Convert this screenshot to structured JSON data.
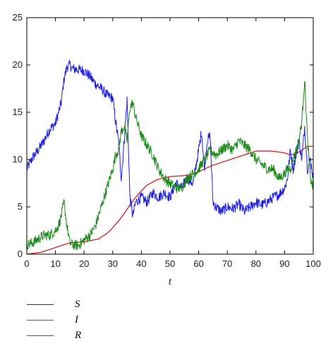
{
  "chart_data": {
    "type": "line",
    "xlabel": "t",
    "ylabel": "",
    "xlim": [
      0,
      100
    ],
    "ylim": [
      0,
      25
    ],
    "xticks": [
      0,
      10,
      20,
      30,
      40,
      50,
      60,
      70,
      80,
      90,
      100
    ],
    "yticks": [
      0,
      5,
      10,
      15,
      20,
      25
    ],
    "grid": false,
    "legend_position": "bottom-left, below plot",
    "series": [
      {
        "name": "S",
        "color": "#1f1fe0",
        "x": [
          0,
          2,
          4,
          6,
          8,
          10,
          12,
          13,
          14,
          15,
          16,
          18,
          20,
          22,
          24,
          26,
          28,
          30,
          31,
          32,
          33,
          34,
          35,
          36,
          37,
          38,
          40,
          42,
          44,
          46,
          48,
          50,
          52,
          54,
          56,
          58,
          60,
          61,
          62,
          63,
          64,
          65,
          66,
          68,
          70,
          72,
          74,
          76,
          78,
          80,
          82,
          84,
          86,
          88,
          90,
          91,
          92,
          93,
          94,
          95,
          96,
          97,
          98,
          99,
          100
        ],
        "y": [
          9,
          10.2,
          11,
          12,
          13.2,
          13.8,
          16,
          18.5,
          19.8,
          20,
          19.6,
          19.5,
          19.4,
          18.8,
          18,
          17.5,
          16.8,
          16.5,
          14,
          12,
          8,
          12,
          16.3,
          6,
          4,
          5.5,
          6,
          5.5,
          6.5,
          6,
          6.5,
          6,
          7.5,
          7,
          8,
          7.5,
          11,
          13,
          9,
          12,
          12.5,
          5.5,
          5,
          4.5,
          5,
          4.8,
          5.3,
          4.5,
          5,
          5.5,
          5.2,
          5.5,
          6,
          6.3,
          7,
          8,
          11,
          9,
          10.5,
          12,
          10,
          13.5,
          9,
          10,
          8
        ]
      },
      {
        "name": "I",
        "color": "#1a8a1a",
        "x": [
          0,
          2,
          4,
          6,
          8,
          10,
          11,
          12,
          13,
          14,
          15,
          16,
          18,
          20,
          22,
          24,
          26,
          28,
          30,
          31,
          32,
          33,
          34,
          35,
          36,
          37,
          38,
          39,
          40,
          42,
          44,
          46,
          48,
          50,
          52,
          54,
          56,
          58,
          60,
          62,
          64,
          66,
          68,
          70,
          72,
          74,
          76,
          78,
          80,
          82,
          84,
          86,
          88,
          90,
          91,
          92,
          93,
          94,
          95,
          96,
          97,
          98,
          99,
          100
        ],
        "y": [
          1,
          1.2,
          1.6,
          2,
          2,
          2.5,
          3,
          4,
          5.5,
          3,
          1.2,
          1,
          0.9,
          1.5,
          2,
          3,
          5,
          7,
          9,
          10.5,
          11,
          13,
          13.5,
          12,
          15.5,
          16,
          14.5,
          13.5,
          12.5,
          11.5,
          10.5,
          9,
          8,
          7.5,
          7,
          7,
          8,
          8.5,
          9,
          10,
          11,
          10.5,
          11,
          11.5,
          11,
          12,
          11.5,
          11,
          10,
          9.5,
          9,
          9,
          8,
          8.5,
          9,
          9,
          10,
          11,
          12,
          14,
          18.5,
          12,
          8,
          7
        ]
      },
      {
        "name": "R",
        "color": "#d42020",
        "x": [
          0,
          5,
          10,
          12,
          15,
          20,
          25,
          28,
          30,
          32,
          34,
          36,
          38,
          40,
          42,
          45,
          48,
          50,
          55,
          58,
          60,
          62,
          65,
          70,
          75,
          80,
          85,
          88,
          90,
          92,
          94,
          96,
          98,
          100
        ],
        "y": [
          0,
          0.2,
          0.7,
          0.9,
          1.2,
          1.3,
          1.6,
          2.2,
          2.8,
          3.5,
          4.3,
          5.2,
          6,
          6.7,
          7.3,
          7.8,
          8.1,
          8.2,
          8.3,
          8.5,
          8.7,
          9,
          9.4,
          9.9,
          10.4,
          10.9,
          10.9,
          10.8,
          10.7,
          10.5,
          10.6,
          11,
          11.4,
          11.4
        ]
      }
    ]
  },
  "legend": {
    "items": [
      {
        "label": "S",
        "color": "#1f1fe0"
      },
      {
        "label": "I",
        "color": "#1a8a1a"
      },
      {
        "label": "R",
        "color": "#d42020"
      }
    ]
  }
}
